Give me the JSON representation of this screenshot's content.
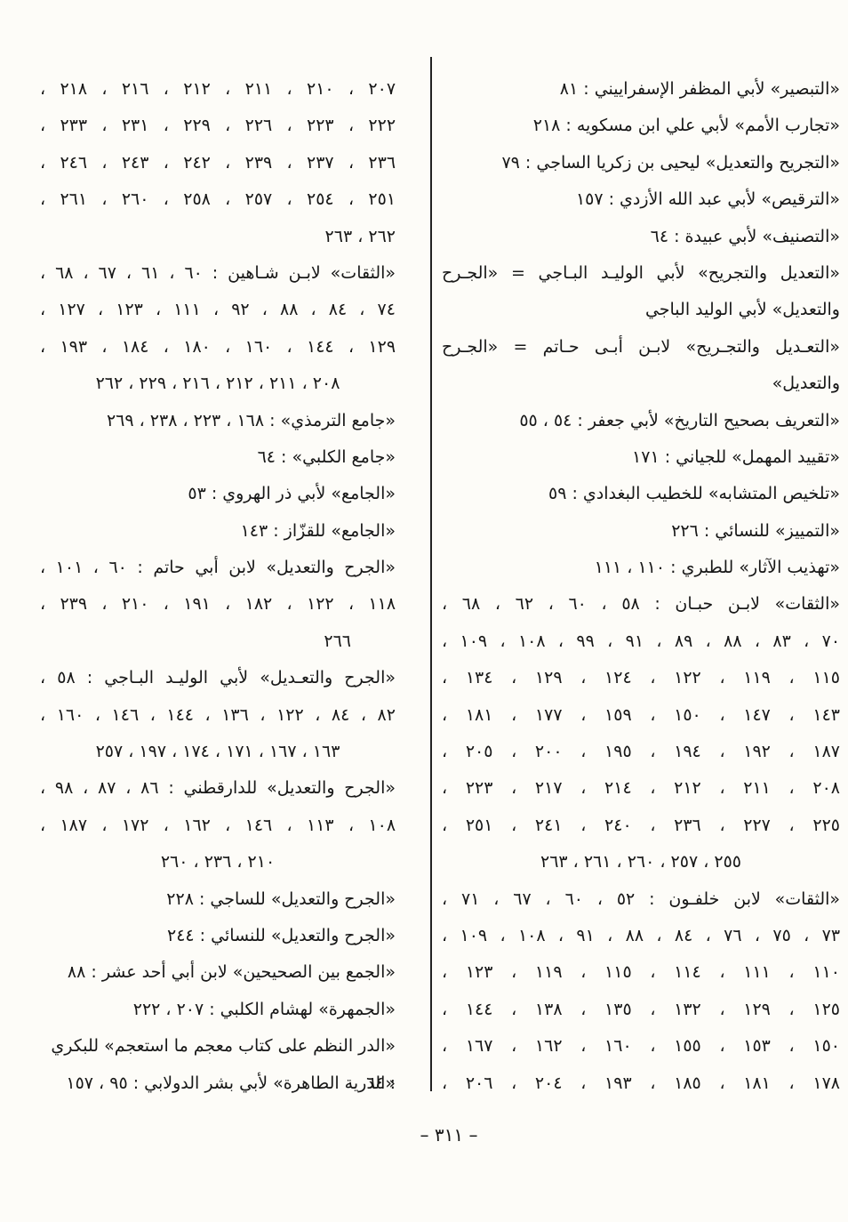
{
  "page": {
    "number_label": "– ٣١١ –"
  },
  "index": {
    "columns": [
      {
        "id": "right",
        "entries": [
          {
            "lines": [
              {
                "t": "«التبصير» لأبي المظفر الإسفراييني : ٨١",
                "a": "start"
              }
            ]
          },
          {
            "lines": [
              {
                "t": "«تجارب الأمم» لأبي علي ابن مسكويه : ٢١٨",
                "a": "start"
              }
            ]
          },
          {
            "lines": [
              {
                "t": "«التجريح والتعديل» ليحيى بن زكريا الساجي : ٧٩",
                "a": "start"
              }
            ]
          },
          {
            "lines": [
              {
                "t": "«الترقيص» لأبي عبد الله الأزدي : ١٥٧",
                "a": "start"
              }
            ]
          },
          {
            "lines": [
              {
                "t": "«التصنيف» لأبي عبيدة : ٦٤",
                "a": "start"
              }
            ]
          },
          {
            "lines": [
              {
                "t": "«التعديل والتجريح» لأبي الوليـد البـاجي = «الجـرح",
                "a": "justify"
              },
              {
                "t": "والتعديل» لأبي الوليد الباجي",
                "a": "start"
              }
            ]
          },
          {
            "lines": [
              {
                "t": "«التعـديل والتجـريح» لابـن أبـى حـاتم = «الجـرح",
                "a": "justify"
              },
              {
                "t": "والتعديل»",
                "a": "start"
              }
            ]
          },
          {
            "lines": [
              {
                "t": "«التعريف بصحيح التاريخ» لأبي جعفر : ٥٤ ، ٥٥",
                "a": "start"
              }
            ]
          },
          {
            "lines": [
              {
                "t": "«تقييد المهمل» للجياني : ١٧١",
                "a": "start"
              }
            ]
          },
          {
            "lines": [
              {
                "t": "«تلخيص المتشابه» للخطيب البغدادي : ٥٩",
                "a": "start"
              }
            ]
          },
          {
            "lines": [
              {
                "t": "«التمييز» للنسائي : ٢٢٦",
                "a": "start"
              }
            ]
          },
          {
            "lines": [
              {
                "t": "«تهذيب الآثار» للطبري : ١١٠ ، ١١١",
                "a": "start"
              }
            ]
          },
          {
            "lines": [
              {
                "t": "«الثقات» لابـن حبـان : ٥٨ ، ٦٠ ، ٦٢ ، ٦٨ ،",
                "a": "justify"
              },
              {
                "t": "٧٠ ، ٨٣ ، ٨٨ ، ٨٩ ، ٩١ ، ٩٩ ، ١٠٨ ، ١٠٩ ،",
                "a": "justify"
              },
              {
                "t": "١١٥ ، ١١٩ ، ١٢٢ ، ١٢٤ ، ١٢٩ ، ١٣٤ ،",
                "a": "justify"
              },
              {
                "t": "١٤٣ ، ١٤٧ ، ١٥٠ ، ١٥٩ ، ١٧٧ ، ١٨١ ،",
                "a": "justify"
              },
              {
                "t": "١٨٧ ، ١٩٢ ، ١٩٤ ، ١٩٥ ، ٢٠٠ ، ٢٠٥ ،",
                "a": "justify"
              },
              {
                "t": "٢٠٨ ، ٢١١ ، ٢١٢ ، ٢١٤ ، ٢١٧ ، ٢٢٣ ،",
                "a": "justify"
              },
              {
                "t": "٢٢٥ ، ٢٢٧ ، ٢٣٦ ، ٢٤٠ ، ٢٤١ ، ٢٥١ ،",
                "a": "justify"
              },
              {
                "t": "٢٥٥ ، ٢٥٧ ، ٢٦٠ ، ٢٦١ ، ٢٦٣",
                "a": "center"
              }
            ]
          },
          {
            "lines": [
              {
                "t": "«الثقات» لابن خلفـون : ٥٢ ، ٦٠ ، ٦٧ ، ٧١ ،",
                "a": "justify"
              },
              {
                "t": "٧٣ ، ٧٥ ، ٧٦ ، ٨٤ ، ٨٨ ، ٩١ ، ١٠٨ ، ١٠٩ ،",
                "a": "justify"
              },
              {
                "t": "١١٠ ، ١١١ ، ١١٤ ، ١١٥ ، ١١٩ ، ١٢٣ ،",
                "a": "justify"
              },
              {
                "t": "١٢٥ ، ١٢٩ ، ١٣٢ ، ١٣٥ ، ١٣٨ ، ١٤٤ ،",
                "a": "justify"
              },
              {
                "t": "١٥٠ ، ١٥٣ ، ١٥٥ ، ١٦٠ ، ١٦٢ ، ١٦٧ ،",
                "a": "justify"
              },
              {
                "t": "١٧٨ ، ١٨١ ، ١٨٥ ، ١٩٣ ، ٢٠٤ ، ٢٠٦ ،",
                "a": "justify"
              }
            ]
          }
        ]
      },
      {
        "id": "left",
        "entries": [
          {
            "lines": [
              {
                "t": "٢٠٧ ، ٢١٠ ، ٢١١ ، ٢١٢ ، ٢١٦ ، ٢١٨ ،",
                "a": "justify"
              },
              {
                "t": "٢٢٢ ، ٢٢٣ ، ٢٢٦ ، ٢٢٩ ، ٢٣١ ، ٢٣٣ ،",
                "a": "justify"
              },
              {
                "t": "٢٣٦ ، ٢٣٧ ، ٢٣٩ ، ٢٤٢ ، ٢٤٣ ، ٢٤٦ ،",
                "a": "justify"
              },
              {
                "t": "٢٥١ ، ٢٥٤ ، ٢٥٧ ، ٢٥٨ ، ٢٦٠ ، ٢٦١ ،",
                "a": "justify"
              },
              {
                "t": "٢٦٢ ، ٢٦٣",
                "a": "start"
              }
            ]
          },
          {
            "lines": [
              {
                "t": "«الثقات» لابـن شـاهين : ٦٠ ، ٦١ ، ٦٧ ، ٦٨ ،",
                "a": "justify"
              },
              {
                "t": "٧٤ ، ٨٤ ، ٨٨ ، ٩٢ ، ١١١ ، ١٢٣ ، ١٢٧ ،",
                "a": "justify"
              },
              {
                "t": "١٢٩ ، ١٤٤ ، ١٦٠ ، ١٨٠ ، ١٨٤ ، ١٩٣ ،",
                "a": "justify"
              },
              {
                "t": "٢٠٨ ، ٢١١ ، ٢١٢ ، ٢١٦ ، ٢٢٩ ، ٢٦٢",
                "a": "center"
              }
            ]
          },
          {
            "lines": [
              {
                "t": "«جامع الترمذي» : ١٦٨ ، ٢٢٣ ، ٢٣٨ ، ٢٦٩",
                "a": "start"
              }
            ]
          },
          {
            "lines": [
              {
                "t": "«جامع الكلبي» : ٦٤",
                "a": "start"
              }
            ]
          },
          {
            "lines": [
              {
                "t": "«الجامع» لأبي ذر الهروي : ٥٣",
                "a": "start"
              }
            ]
          },
          {
            "lines": [
              {
                "t": "«الجامع» للقزّاز : ١٤٣",
                "a": "start"
              }
            ]
          },
          {
            "lines": [
              {
                "t": "«الجرح والتعديل» لابن أبي حاتم : ٦٠ ، ١٠١ ،",
                "a": "justify"
              },
              {
                "t": "١١٨ ، ١٢٢ ، ١٨٢ ، ١٩١ ، ٢١٠ ، ٢٣٩ ،",
                "a": "justify"
              },
              {
                "t": "٢٦٦",
                "a": "indent"
              }
            ]
          },
          {
            "lines": [
              {
                "t": "«الجرح والتعـديل» لأبي الوليـد البـاجي : ٥٨ ،",
                "a": "justify"
              },
              {
                "t": "٨٢ ، ٨٤ ، ١٢٢ ، ١٣٦ ، ١٤٤ ، ١٤٦ ، ١٦٠ ،",
                "a": "justify"
              },
              {
                "t": "١٦٣ ، ١٦٧ ، ١٧١ ، ١٧٤ ، ١٩٧ ، ٢٥٧",
                "a": "center"
              }
            ]
          },
          {
            "lines": [
              {
                "t": "«الجرح والتعديل» للدارقطني : ٨٦ ، ٨٧ ، ٩٨ ،",
                "a": "justify"
              },
              {
                "t": "١٠٨ ، ١١٣ ، ١٤٦ ، ١٦٢ ، ١٧٢ ، ١٨٧ ،",
                "a": "justify"
              },
              {
                "t": "٢١٠ ، ٢٣٦ ، ٢٦٠",
                "a": "center"
              }
            ]
          },
          {
            "lines": [
              {
                "t": "«الجرح والتعديل» للساجي : ٢٢٨",
                "a": "start"
              }
            ]
          },
          {
            "lines": [
              {
                "t": "«الجرح والتعديل» للنسائي : ٢٤٤",
                "a": "start"
              }
            ]
          },
          {
            "lines": [
              {
                "t": "«الجمع بين الصحيحين» لابن أبي أحد عشر : ٨٨",
                "a": "start"
              }
            ]
          },
          {
            "lines": [
              {
                "t": "«الجمهرة» لهشام الكلبي : ٢٠٧ ، ٢٢٢",
                "a": "start"
              }
            ]
          },
          {
            "lines": [
              {
                "t": "«الدر النظم على كتاب معجم ما استعجم» للبكري : ٦٤",
                "a": "start"
              }
            ]
          },
          {
            "lines": [
              {
                "t": "«الذرية الطاهرة» لأبي بشر الدولابي : ٩٥ ، ١٥٧",
                "a": "start"
              }
            ]
          }
        ]
      }
    ]
  }
}
